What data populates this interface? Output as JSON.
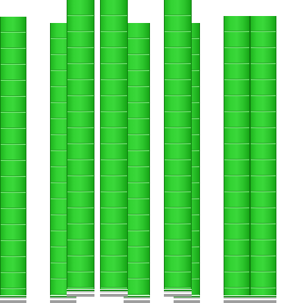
{
  "scene": {
    "background": "#ffffff",
    "strip_color": "#2cc52c",
    "strip_outline": "#0e7a0e",
    "base_color": "#9e9e9e"
  }
}
